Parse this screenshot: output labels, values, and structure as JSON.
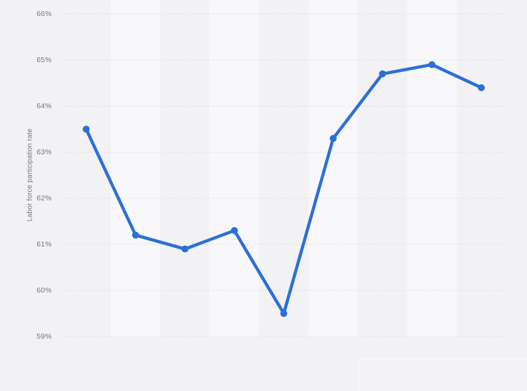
{
  "chart_style": {
    "background_color": "#f2f1f4",
    "band_light_color": "#f8f7fa",
    "grid_color": "#d2d1d7",
    "axis_text_color": "#76747c",
    "series_color": "#2c6fd8"
  },
  "y_axis": {
    "title": "Labor force participation rate",
    "tick_labels": [
      "66%",
      "65%",
      "64%",
      "63%",
      "62%",
      "61%",
      "60%",
      "59%"
    ]
  },
  "chart_data": {
    "type": "line",
    "title": "",
    "xlabel": "",
    "ylabel": "Labor force participation rate",
    "x_axis_labels_visible": false,
    "categories": [
      "",
      "",
      "",
      "",
      "",
      "",
      "",
      "",
      ""
    ],
    "series": [
      {
        "name": "Labor force participation rate",
        "values": [
          63.5,
          61.2,
          60.9,
          61.3,
          59.5,
          63.3,
          64.7,
          64.9,
          64.4
        ]
      }
    ],
    "ylim": [
      59,
      66
    ],
    "ytick_step": 1,
    "ytick_suffix": "%",
    "grid": "horizontal-dotted",
    "plot_background": "alternating-vertical-bands",
    "legend": "none",
    "markers": true
  }
}
